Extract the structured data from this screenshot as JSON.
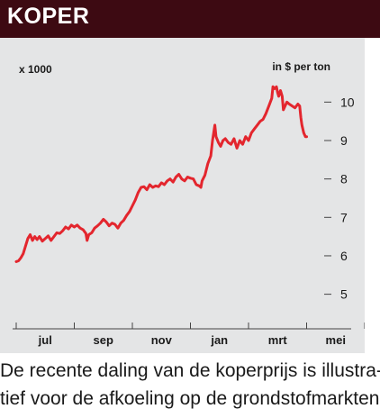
{
  "header": {
    "title": "KOPER"
  },
  "chart_data": {
    "type": "line",
    "title": "",
    "ylabel_left": "x 1000",
    "ylabel_right": "in $ per ton",
    "y_ticks": [
      5,
      6,
      7,
      8,
      9,
      10
    ],
    "ylim": [
      4.1,
      10.5
    ],
    "x_ticks": [
      "jul",
      "sep",
      "nov",
      "jan",
      "mrt",
      "mei"
    ],
    "grid": false,
    "color": "#e3262e",
    "series": [
      {
        "values": [
          [
            0.0,
            5.85
          ],
          [
            0.04,
            5.87
          ],
          [
            0.08,
            5.95
          ],
          [
            0.12,
            6.05
          ],
          [
            0.16,
            6.25
          ],
          [
            0.2,
            6.45
          ],
          [
            0.24,
            6.55
          ],
          [
            0.28,
            6.4
          ],
          [
            0.32,
            6.5
          ],
          [
            0.36,
            6.42
          ],
          [
            0.4,
            6.5
          ],
          [
            0.45,
            6.38
          ],
          [
            0.5,
            6.45
          ],
          [
            0.55,
            6.52
          ],
          [
            0.6,
            6.4
          ],
          [
            0.65,
            6.5
          ],
          [
            0.7,
            6.6
          ],
          [
            0.75,
            6.58
          ],
          [
            0.8,
            6.65
          ],
          [
            0.85,
            6.75
          ],
          [
            0.9,
            6.7
          ],
          [
            0.95,
            6.8
          ],
          [
            1.0,
            6.75
          ],
          [
            1.05,
            6.8
          ],
          [
            1.1,
            6.72
          ],
          [
            1.15,
            6.68
          ],
          [
            1.2,
            6.58
          ],
          [
            1.22,
            6.4
          ],
          [
            1.25,
            6.55
          ],
          [
            1.3,
            6.6
          ],
          [
            1.35,
            6.72
          ],
          [
            1.4,
            6.78
          ],
          [
            1.45,
            6.85
          ],
          [
            1.5,
            6.95
          ],
          [
            1.55,
            6.88
          ],
          [
            1.6,
            6.78
          ],
          [
            1.65,
            6.85
          ],
          [
            1.7,
            6.82
          ],
          [
            1.75,
            6.72
          ],
          [
            1.8,
            6.85
          ],
          [
            1.85,
            6.92
          ],
          [
            1.9,
            7.05
          ],
          [
            1.95,
            7.15
          ],
          [
            2.0,
            7.3
          ],
          [
            2.05,
            7.45
          ],
          [
            2.1,
            7.65
          ],
          [
            2.15,
            7.78
          ],
          [
            2.2,
            7.8
          ],
          [
            2.25,
            7.72
          ],
          [
            2.3,
            7.85
          ],
          [
            2.35,
            7.78
          ],
          [
            2.4,
            7.82
          ],
          [
            2.45,
            7.8
          ],
          [
            2.5,
            7.9
          ],
          [
            2.55,
            7.85
          ],
          [
            2.6,
            7.95
          ],
          [
            2.65,
            8.0
          ],
          [
            2.7,
            7.92
          ],
          [
            2.75,
            8.05
          ],
          [
            2.8,
            8.12
          ],
          [
            2.85,
            8.0
          ],
          [
            2.9,
            7.95
          ],
          [
            2.95,
            8.05
          ],
          [
            3.0,
            8.02
          ],
          [
            3.05,
            8.0
          ],
          [
            3.1,
            7.85
          ],
          [
            3.15,
            7.82
          ],
          [
            3.18,
            7.78
          ],
          [
            3.2,
            7.95
          ],
          [
            3.25,
            8.1
          ],
          [
            3.3,
            8.4
          ],
          [
            3.35,
            8.6
          ],
          [
            3.38,
            9.0
          ],
          [
            3.4,
            9.2
          ],
          [
            3.42,
            9.4
          ],
          [
            3.44,
            9.1
          ],
          [
            3.48,
            8.95
          ],
          [
            3.52,
            8.85
          ],
          [
            3.56,
            9.0
          ],
          [
            3.6,
            9.05
          ],
          [
            3.65,
            8.95
          ],
          [
            3.7,
            8.9
          ],
          [
            3.75,
            9.05
          ],
          [
            3.8,
            8.8
          ],
          [
            3.85,
            9.0
          ],
          [
            3.9,
            8.9
          ],
          [
            3.95,
            9.1
          ],
          [
            4.0,
            9.0
          ],
          [
            4.05,
            9.2
          ],
          [
            4.1,
            9.3
          ],
          [
            4.15,
            9.4
          ],
          [
            4.2,
            9.5
          ],
          [
            4.25,
            9.55
          ],
          [
            4.3,
            9.7
          ],
          [
            4.35,
            9.9
          ],
          [
            4.4,
            10.1
          ],
          [
            4.42,
            10.4
          ],
          [
            4.45,
            10.35
          ],
          [
            4.48,
            10.4
          ],
          [
            4.5,
            10.25
          ],
          [
            4.52,
            10.15
          ],
          [
            4.55,
            10.3
          ],
          [
            4.58,
            10.15
          ],
          [
            4.6,
            9.8
          ],
          [
            4.63,
            9.9
          ],
          [
            4.66,
            10.0
          ],
          [
            4.7,
            9.95
          ],
          [
            4.75,
            9.9
          ],
          [
            4.8,
            9.85
          ],
          [
            4.85,
            9.95
          ],
          [
            4.88,
            9.9
          ],
          [
            4.9,
            9.6
          ],
          [
            4.92,
            9.4
          ],
          [
            4.95,
            9.2
          ],
          [
            4.98,
            9.1
          ],
          [
            5.0,
            9.1
          ]
        ]
      }
    ]
  },
  "caption": {
    "line1": "De recente daling van de koperprijs is illustra-",
    "line2": "tief voor de afkoeling op de grondstofmarkten."
  }
}
